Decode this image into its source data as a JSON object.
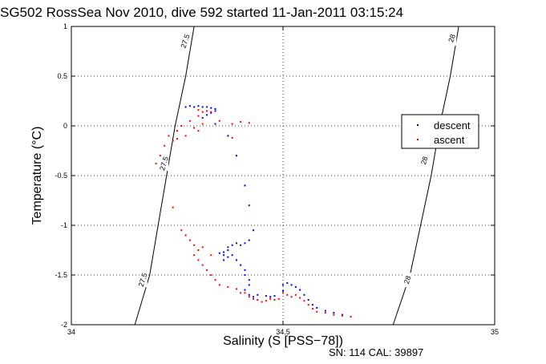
{
  "title": "SG502 RossSea Nov 2010, dive 592 started 11-Jan-2011 03:15:24",
  "footer": "SN: 114  CAL: 39897",
  "chart_data": {
    "type": "scatter",
    "xlabel": "Salinity (S [PSS−78])",
    "ylabel": "Temperature (°C)",
    "xlim": [
      34,
      35
    ],
    "ylim": [
      -2,
      1
    ],
    "x_ticks": [
      34,
      34.5,
      35
    ],
    "y_ticks": [
      -2,
      -1.5,
      -1,
      -0.5,
      0,
      0.5,
      1
    ],
    "x_tick_labels": [
      "34",
      "34.5",
      "35"
    ],
    "y_tick_labels": [
      "-2",
      "-1.5",
      "-1",
      "-0.5",
      "0",
      "0.5",
      "1"
    ],
    "grid": true,
    "grid_style": "dotted",
    "legend_position": "right",
    "series": [
      {
        "name": "descent",
        "color": "#0000ff",
        "marker": "dot",
        "points": [
          [
            34.27,
            0.19
          ],
          [
            34.28,
            0.2
          ],
          [
            34.29,
            0.19
          ],
          [
            34.3,
            0.2
          ],
          [
            34.31,
            0.19
          ],
          [
            34.32,
            0.19
          ],
          [
            34.33,
            0.18
          ],
          [
            34.34,
            0.17
          ],
          [
            34.34,
            0.15
          ],
          [
            34.33,
            0.13
          ],
          [
            34.32,
            0.11
          ],
          [
            34.31,
            0.08
          ],
          [
            34.34,
            0.02
          ],
          [
            34.37,
            -0.1
          ],
          [
            34.39,
            -0.3
          ],
          [
            34.41,
            -0.6
          ],
          [
            34.42,
            -0.8
          ],
          [
            34.43,
            -1.05
          ],
          [
            34.42,
            -1.15
          ],
          [
            34.41,
            -1.18
          ],
          [
            34.4,
            -1.2
          ],
          [
            34.39,
            -1.18
          ],
          [
            34.38,
            -1.2
          ],
          [
            34.37,
            -1.22
          ],
          [
            34.37,
            -1.25
          ],
          [
            34.36,
            -1.27
          ],
          [
            34.35,
            -1.28
          ],
          [
            34.36,
            -1.3
          ],
          [
            34.37,
            -1.32
          ],
          [
            34.36,
            -1.35
          ],
          [
            34.38,
            -1.3
          ],
          [
            34.39,
            -1.35
          ],
          [
            34.4,
            -1.4
          ],
          [
            34.41,
            -1.45
          ],
          [
            34.41,
            -1.5
          ],
          [
            34.42,
            -1.55
          ],
          [
            34.42,
            -1.6
          ],
          [
            34.41,
            -1.65
          ],
          [
            34.42,
            -1.7
          ],
          [
            34.43,
            -1.72
          ],
          [
            34.44,
            -1.7
          ],
          [
            34.46,
            -1.71
          ],
          [
            34.47,
            -1.72
          ],
          [
            34.48,
            -1.71
          ],
          [
            34.5,
            -1.66
          ],
          [
            34.5,
            -1.6
          ],
          [
            34.51,
            -1.58
          ],
          [
            34.52,
            -1.6
          ],
          [
            34.53,
            -1.62
          ],
          [
            34.54,
            -1.65
          ],
          [
            34.55,
            -1.7
          ],
          [
            34.56,
            -1.75
          ],
          [
            34.57,
            -1.8
          ],
          [
            34.58,
            -1.83
          ],
          [
            34.6,
            -1.86
          ],
          [
            34.62,
            -1.88
          ],
          [
            34.64,
            -1.9
          ]
        ]
      },
      {
        "name": "ascent",
        "color": "#ff0000",
        "marker": "dot",
        "points": [
          [
            34.21,
            -0.3
          ],
          [
            34.2,
            -0.38
          ],
          [
            34.22,
            -0.2
          ],
          [
            34.23,
            -0.1
          ],
          [
            34.25,
            -0.05
          ],
          [
            34.24,
            -0.15
          ],
          [
            34.26,
            0.0
          ],
          [
            34.28,
            0.05
          ],
          [
            34.3,
            0.1
          ],
          [
            34.31,
            0.14
          ],
          [
            34.32,
            0.15
          ],
          [
            34.33,
            0.14
          ],
          [
            34.3,
            0.16
          ],
          [
            34.35,
            0.05
          ],
          [
            34.38,
            0.02
          ],
          [
            34.4,
            0.04
          ],
          [
            34.42,
            0.03
          ],
          [
            34.38,
            -0.12
          ],
          [
            34.31,
            0.02
          ],
          [
            34.29,
            -0.02
          ],
          [
            34.3,
            -0.05
          ],
          [
            34.27,
            -0.1
          ],
          [
            34.25,
            -0.13
          ],
          [
            34.24,
            -0.82
          ],
          [
            34.26,
            -1.05
          ],
          [
            34.27,
            -1.1
          ],
          [
            34.28,
            -1.15
          ],
          [
            34.29,
            -1.2
          ],
          [
            34.3,
            -1.25
          ],
          [
            34.29,
            -1.3
          ],
          [
            34.3,
            -1.35
          ],
          [
            34.31,
            -1.4
          ],
          [
            34.32,
            -1.45
          ],
          [
            34.33,
            -1.5
          ],
          [
            34.34,
            -1.55
          ],
          [
            34.35,
            -1.6
          ],
          [
            34.37,
            -1.62
          ],
          [
            34.39,
            -1.64
          ],
          [
            34.41,
            -1.68
          ],
          [
            34.42,
            -1.72
          ],
          [
            34.43,
            -1.74
          ],
          [
            34.44,
            -1.75
          ],
          [
            34.46,
            -1.76
          ],
          [
            34.47,
            -1.74
          ],
          [
            34.48,
            -1.75
          ],
          [
            34.49,
            -1.74
          ],
          [
            34.5,
            -1.68
          ],
          [
            34.51,
            -1.7
          ],
          [
            34.52,
            -1.72
          ],
          [
            34.53,
            -1.7
          ],
          [
            34.54,
            -1.73
          ],
          [
            34.55,
            -1.76
          ],
          [
            34.56,
            -1.8
          ],
          [
            34.57,
            -1.84
          ],
          [
            34.58,
            -1.87
          ],
          [
            34.6,
            -1.88
          ],
          [
            34.62,
            -1.9
          ],
          [
            34.64,
            -1.91
          ],
          [
            34.66,
            -1.92
          ],
          [
            34.33,
            -1.3
          ],
          [
            34.31,
            -1.22
          ],
          [
            34.4,
            -1.68
          ],
          [
            34.45,
            -1.77
          ]
        ]
      }
    ],
    "isopycnals": [
      {
        "label": "27.5",
        "color": "#000000",
        "points": [
          [
            34.15,
            -2
          ],
          [
            34.185,
            -1.5
          ],
          [
            34.205,
            -1.0
          ],
          [
            34.225,
            -0.5
          ],
          [
            34.245,
            0.0
          ],
          [
            34.27,
            0.5
          ],
          [
            34.29,
            1.0
          ]
        ],
        "label_positions": [
          [
            34.27,
            0.85
          ],
          [
            34.22,
            -0.38
          ],
          [
            34.17,
            -1.55
          ]
        ]
      },
      {
        "label": "28",
        "color": "#000000",
        "points": [
          [
            34.76,
            -2
          ],
          [
            34.8,
            -1.5
          ],
          [
            34.825,
            -1.0
          ],
          [
            34.85,
            -0.5
          ],
          [
            34.87,
            0.0
          ],
          [
            34.895,
            0.5
          ],
          [
            34.915,
            1.0
          ]
        ],
        "label_positions": [
          [
            34.9,
            0.88
          ],
          [
            34.835,
            -0.35
          ],
          [
            34.795,
            -1.55
          ]
        ]
      }
    ]
  }
}
